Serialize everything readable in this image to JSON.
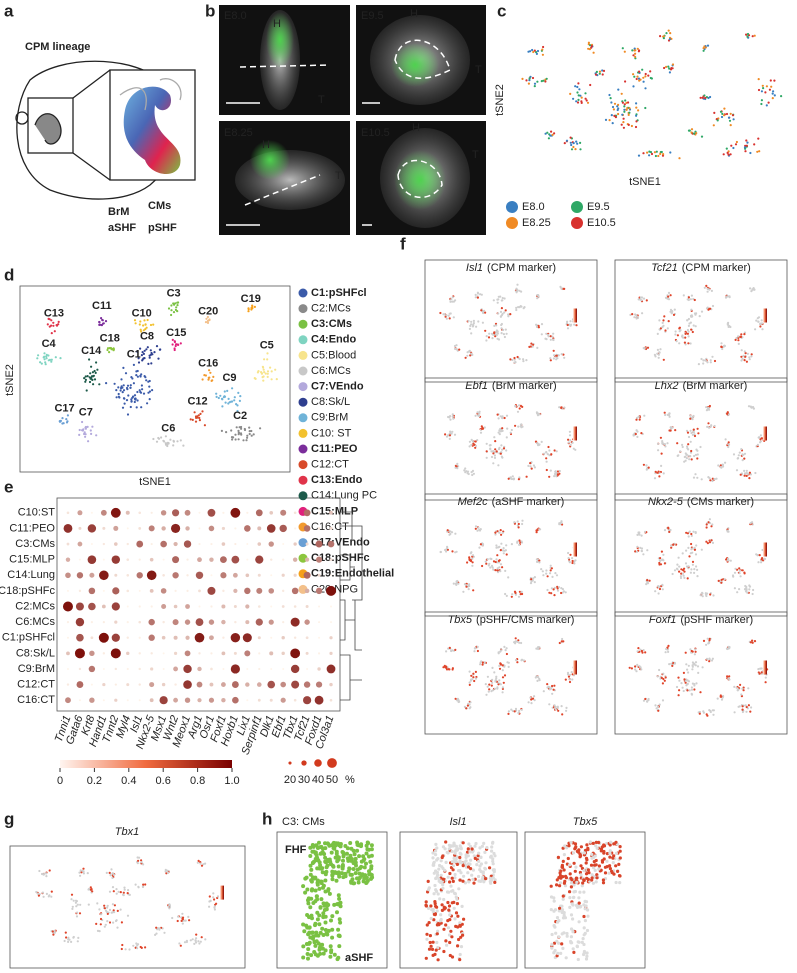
{
  "panels": {
    "a": {
      "label": "a",
      "title": "CPM lineage",
      "legend": [
        {
          "name": "BrM",
          "color": "#6fb3e0"
        },
        {
          "name": "CMs",
          "color": "#7ac143"
        },
        {
          "name": "aSHF",
          "color": "#e0234e"
        },
        {
          "name": "pSHF",
          "color": "#4a66b5"
        }
      ]
    },
    "b": {
      "label": "b",
      "stages": [
        "E8.0",
        "E9.5",
        "E8.25",
        "E10.5"
      ],
      "head": "H",
      "tail": "T"
    },
    "c": {
      "label": "c",
      "xlabel": "tSNE1",
      "ylabel": "tSNE2",
      "legend": [
        {
          "name": "E8.0",
          "color": "#3a7fc1"
        },
        {
          "name": "E9.5",
          "color": "#2fa866"
        },
        {
          "name": "E8.25",
          "color": "#f08a24"
        },
        {
          "name": "E10.5",
          "color": "#d8312e"
        }
      ]
    },
    "d": {
      "label": "d",
      "xlabel": "tSNE1",
      "ylabel": "tSNE2",
      "clusters": [
        {
          "tag": "C1",
          "name": "C1:pSHFcl",
          "color": "#3b5ba9",
          "bold": true
        },
        {
          "tag": "C2",
          "name": "C2:MCs",
          "color": "#8a8a8a",
          "bold": false
        },
        {
          "tag": "C3",
          "name": "C3:CMs",
          "color": "#7ac143",
          "bold": true
        },
        {
          "tag": "C4",
          "name": "C4:Endo",
          "color": "#7fd4c1",
          "bold": true
        },
        {
          "tag": "C5",
          "name": "C5:Blood",
          "color": "#f7e48c",
          "bold": false
        },
        {
          "tag": "C6",
          "name": "C6:MCs",
          "color": "#c8c8c8",
          "bold": false
        },
        {
          "tag": "C7",
          "name": "C7:VEndo",
          "color": "#b3a9dc",
          "bold": true
        },
        {
          "tag": "C8",
          "name": "C8:Sk/L",
          "color": "#2e3f8f",
          "bold": false
        },
        {
          "tag": "C9",
          "name": "C9:BrM",
          "color": "#6fb3d8",
          "bold": false
        },
        {
          "tag": "C10",
          "name": "C10: ST",
          "color": "#f2c12e",
          "bold": false
        },
        {
          "tag": "C11",
          "name": "C11:PEO",
          "color": "#7b2d9b",
          "bold": true
        },
        {
          "tag": "C12",
          "name": "C12:CT",
          "color": "#d84a2a",
          "bold": false
        },
        {
          "tag": "C13",
          "name": "C13:Endo",
          "color": "#e0344a",
          "bold": true
        },
        {
          "tag": "C14",
          "name": "C14:Lung PC",
          "color": "#1d5a4a",
          "bold": false
        },
        {
          "tag": "C15",
          "name": "C15:MLP",
          "color": "#e0207c",
          "bold": true
        },
        {
          "tag": "C16",
          "name": "C16:CT",
          "color": "#f29a2e",
          "bold": false
        },
        {
          "tag": "C17",
          "name": "C17:VEndo",
          "color": "#6a9fd4",
          "bold": true
        },
        {
          "tag": "C18",
          "name": "C18:pSHFc",
          "color": "#8cc63e",
          "bold": true
        },
        {
          "tag": "C19",
          "name": "C19:Endothelial",
          "color": "#f6a01a",
          "bold": true
        },
        {
          "tag": "C20",
          "name": "C20:NPG",
          "color": "#f3c08a",
          "bold": false
        }
      ]
    },
    "e": {
      "label": "e",
      "rows": [
        "C10:ST",
        "C11:PEO",
        "C3:CMs",
        "C15:MLP",
        "C14:Lung",
        "C18:pSHFc",
        "C2:MCs",
        "C6:MCs",
        "C1:pSHFcl",
        "C8:Sk/L",
        "C9:BrM",
        "C12:CT",
        "C16:CT"
      ],
      "genes": [
        "Tnni1",
        "Gata6",
        "Krt8",
        "Hand1",
        "Tnnt2",
        "Myl4",
        "Isl1",
        "Nkx2-5",
        "Msx1",
        "Wnt2",
        "Meox1",
        "Arg1",
        "Osr1",
        "Foxf1",
        "Hoxb1",
        "Lix1",
        "Serpinf1",
        "Dlk1",
        "Ebf1",
        "Tbx1",
        "Tcf21",
        "Foxd1",
        "Col3a1"
      ],
      "colorbar_ticks": [
        0,
        0.2,
        0.4,
        0.6,
        0.8,
        {
          "value": 1,
          "label": "1.0"
        }
      ],
      "size_ticks": [
        20,
        30,
        40,
        50
      ],
      "size_unit": "%"
    },
    "f": {
      "label": "f",
      "plots": [
        {
          "gene": "Isl1",
          "note": "(CPM marker)"
        },
        {
          "gene": "Tcf21",
          "note": "(CPM marker)"
        },
        {
          "gene": "Ebf1",
          "note": "(BrM marker)"
        },
        {
          "gene": "Lhx2",
          "note": "(BrM marker)"
        },
        {
          "gene": "Mef2c",
          "note": "(aSHF marker)"
        },
        {
          "gene": "Nkx2-5",
          "note": "(CMs marker)"
        },
        {
          "gene": "Tbx5",
          "note": "(pSHF/CMs marker)"
        },
        {
          "gene": "Foxf1",
          "note": "(pSHF marker)"
        }
      ]
    },
    "g": {
      "label": "g",
      "gene": "Tbx1"
    },
    "h": {
      "label": "h",
      "title": "C3: CMs",
      "top": "FHF",
      "bottom": "aSHF",
      "genes": [
        "Isl1",
        "Tbx5"
      ]
    }
  }
}
